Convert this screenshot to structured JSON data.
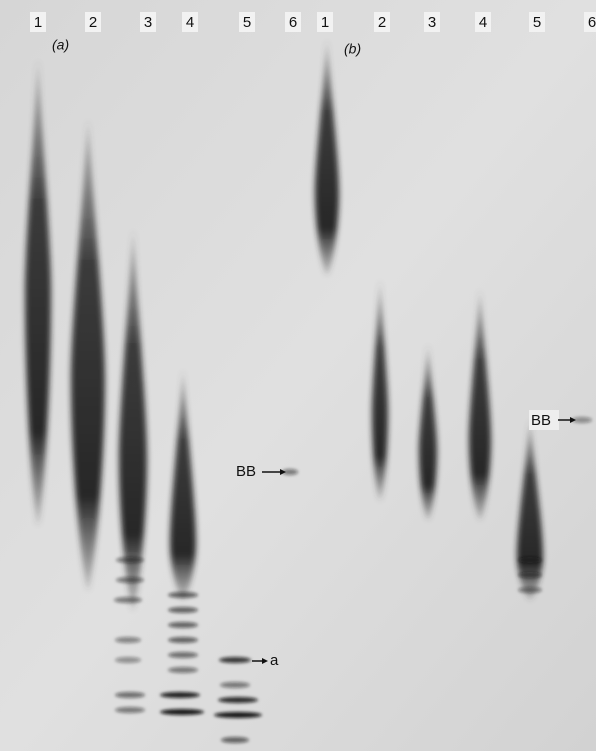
{
  "panels": [
    {
      "label": "(a)",
      "lanes": [
        "1",
        "2",
        "3",
        "4",
        "5",
        "6"
      ],
      "markers": [
        "BB",
        "a"
      ]
    },
    {
      "label": "(b)",
      "lanes": [
        "1",
        "2",
        "3",
        "4",
        "5",
        "6"
      ],
      "markers": [
        "BB"
      ]
    }
  ]
}
